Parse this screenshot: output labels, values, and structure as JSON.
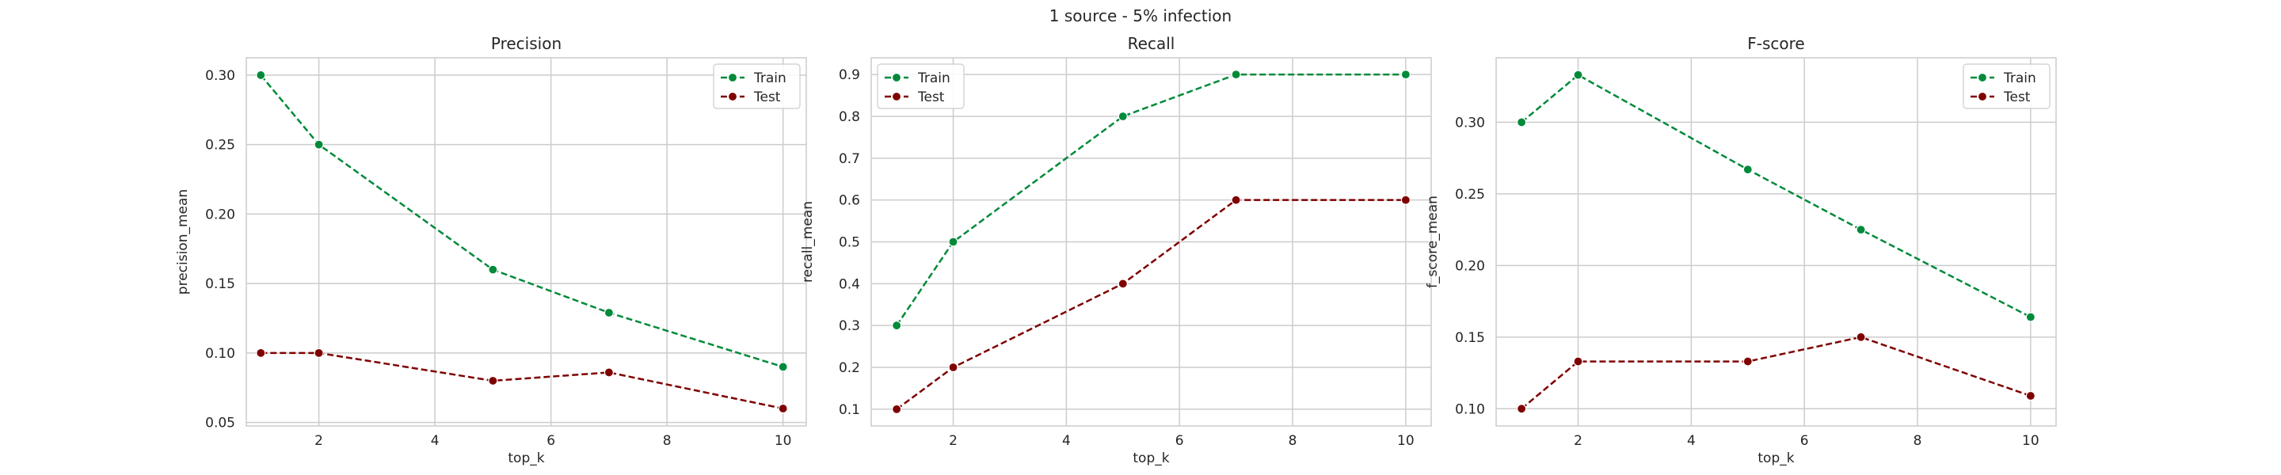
{
  "suptitle": "1 source - 5% infection",
  "colors": {
    "train": "#008a3a",
    "test": "#7f0000"
  },
  "chart_data": [
    {
      "type": "line",
      "title": "Precision",
      "xlabel": "top_k",
      "ylabel": "precision_mean",
      "xlim": [
        0.75,
        10.4
      ],
      "ylim": [
        0.0475,
        0.3125
      ],
      "xticks": [
        2,
        4,
        6,
        8,
        10
      ],
      "yticks": [
        0.05,
        0.1,
        0.15,
        0.2,
        0.25,
        0.3
      ],
      "ytick_labels": [
        "0.05",
        "0.10",
        "0.15",
        "0.20",
        "0.25",
        "0.30"
      ],
      "legend": "top-right",
      "grid": true,
      "x": [
        1,
        2,
        5,
        7,
        10
      ],
      "series": [
        {
          "name": "Train",
          "color": "#008a3a",
          "values": [
            0.3,
            0.25,
            0.16,
            0.129,
            0.09
          ]
        },
        {
          "name": "Test",
          "color": "#7f0000",
          "values": [
            0.1,
            0.1,
            0.08,
            0.086,
            0.06
          ]
        }
      ]
    },
    {
      "type": "line",
      "title": "Recall",
      "xlabel": "top_k",
      "ylabel": "recall_mean",
      "xlim": [
        0.55,
        10.45
      ],
      "ylim": [
        0.06,
        0.94
      ],
      "xticks": [
        2,
        4,
        6,
        8,
        10
      ],
      "yticks": [
        0.1,
        0.2,
        0.3,
        0.4,
        0.5,
        0.6,
        0.7,
        0.8,
        0.9
      ],
      "ytick_labels": [
        "0.1",
        "0.2",
        "0.3",
        "0.4",
        "0.5",
        "0.6",
        "0.7",
        "0.8",
        "0.9"
      ],
      "legend": "top-left",
      "grid": true,
      "x": [
        1,
        2,
        5,
        7,
        10
      ],
      "series": [
        {
          "name": "Train",
          "color": "#008a3a",
          "values": [
            0.3,
            0.5,
            0.8,
            0.9,
            0.9
          ]
        },
        {
          "name": "Test",
          "color": "#7f0000",
          "values": [
            0.1,
            0.2,
            0.4,
            0.6,
            0.6
          ]
        }
      ]
    },
    {
      "type": "line",
      "title": "F-score",
      "xlabel": "top_k",
      "ylabel": "f_score_mean",
      "xlim": [
        0.55,
        10.45
      ],
      "ylim": [
        0.088,
        0.345
      ],
      "xticks": [
        2,
        4,
        6,
        8,
        10
      ],
      "yticks": [
        0.1,
        0.15,
        0.2,
        0.25,
        0.3
      ],
      "ytick_labels": [
        "0.10",
        "0.15",
        "0.20",
        "0.25",
        "0.30"
      ],
      "legend": "top-right",
      "grid": true,
      "x": [
        1,
        2,
        5,
        7,
        10
      ],
      "series": [
        {
          "name": "Train",
          "color": "#008a3a",
          "values": [
            0.3,
            0.333,
            0.267,
            0.225,
            0.164
          ]
        },
        {
          "name": "Test",
          "color": "#7f0000",
          "values": [
            0.1,
            0.133,
            0.133,
            0.15,
            0.109
          ]
        }
      ]
    }
  ]
}
